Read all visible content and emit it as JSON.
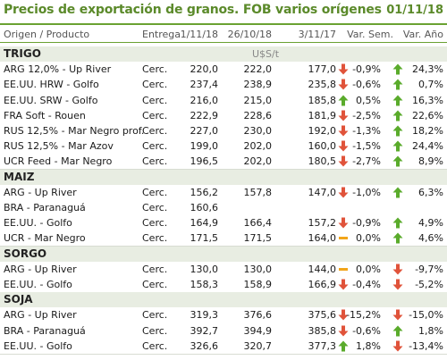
{
  "title": "Precios de exportación de granos. FOB varios orígenes",
  "date": "01/11/18",
  "headers": {
    "origin": "Origen / Producto",
    "delivery": "Entrega",
    "d1": "1/11/18",
    "d2": "26/10/18",
    "d3": "3/11/17",
    "var_sem": "Var. Sem.",
    "var_ano": "Var. Año"
  },
  "unit": "U$S/t",
  "colors": {
    "up": "#5aab2b",
    "down": "#e0533a",
    "flat": "#f2a51a",
    "accent": "#5b8a2a"
  },
  "sections": [
    {
      "name": "TRIGO",
      "rows": [
        {
          "name": "ARG 12,0% - Up River",
          "ent": "Cerc.",
          "d1": "220,0",
          "d2": "222,0",
          "d3": "177,0",
          "t3": "down",
          "sem": "-0,9%",
          "ts": "up",
          "ano": "24,3%"
        },
        {
          "name": "EE.UU. HRW - Golfo",
          "ent": "Cerc.",
          "d1": "237,4",
          "d2": "238,9",
          "d3": "235,8",
          "t3": "down",
          "sem": "-0,6%",
          "ts": "up",
          "ano": "0,7%"
        },
        {
          "name": "EE.UU. SRW - Golfo",
          "ent": "Cerc.",
          "d1": "216,0",
          "d2": "215,0",
          "d3": "185,8",
          "t3": "up",
          "sem": "0,5%",
          "ts": "up",
          "ano": "16,3%"
        },
        {
          "name": "FRA Soft - Rouen",
          "ent": "Cerc.",
          "d1": "222,9",
          "d2": "228,6",
          "d3": "181,9",
          "t3": "down",
          "sem": "-2,5%",
          "ts": "up",
          "ano": "22,6%"
        },
        {
          "name": "RUS 12,5% - Mar Negro prof.",
          "ent": "Cerc.",
          "d1": "227,0",
          "d2": "230,0",
          "d3": "192,0",
          "t3": "down",
          "sem": "-1,3%",
          "ts": "up",
          "ano": "18,2%"
        },
        {
          "name": "RUS 12,5% - Mar Azov",
          "ent": "Cerc.",
          "d1": "199,0",
          "d2": "202,0",
          "d3": "160,0",
          "t3": "down",
          "sem": "-1,5%",
          "ts": "up",
          "ano": "24,4%"
        },
        {
          "name": "UCR Feed - Mar Negro",
          "ent": "Cerc.",
          "d1": "196,5",
          "d2": "202,0",
          "d3": "180,5",
          "t3": "down",
          "sem": "-2,7%",
          "ts": "up",
          "ano": "8,9%"
        }
      ]
    },
    {
      "name": "MAIZ",
      "rows": [
        {
          "name": "ARG - Up River",
          "ent": "Cerc.",
          "d1": "156,2",
          "d2": "157,8",
          "d3": "147,0",
          "t3": "down",
          "sem": "-1,0%",
          "ts": "up",
          "ano": "6,3%"
        },
        {
          "name": "BRA - Paranaguá",
          "ent": "Cerc.",
          "d1": "160,6",
          "d2": "",
          "d3": "",
          "t3": "",
          "sem": "",
          "ts": "",
          "ano": ""
        },
        {
          "name": "EE.UU. - Golfo",
          "ent": "Cerc.",
          "d1": "164,9",
          "d2": "166,4",
          "d3": "157,2",
          "t3": "down",
          "sem": "-0,9%",
          "ts": "up",
          "ano": "4,9%"
        },
        {
          "name": "UCR - Mar Negro",
          "ent": "Cerc.",
          "d1": "171,5",
          "d2": "171,5",
          "d3": "164,0",
          "t3": "flat",
          "sem": "0,0%",
          "ts": "up",
          "ano": "4,6%"
        }
      ]
    },
    {
      "name": "SORGO",
      "rows": [
        {
          "name": "ARG - Up River",
          "ent": "Cerc.",
          "d1": "130,0",
          "d2": "130,0",
          "d3": "144,0",
          "t3": "flat",
          "sem": "0,0%",
          "ts": "down",
          "ano": "-9,7%"
        },
        {
          "name": "EE.UU. - Golfo",
          "ent": "Cerc.",
          "d1": "158,3",
          "d2": "158,9",
          "d3": "166,9",
          "t3": "down",
          "sem": "-0,4%",
          "ts": "down",
          "ano": "-5,2%"
        }
      ]
    },
    {
      "name": "SOJA",
      "rows": [
        {
          "name": "ARG - Up River",
          "ent": "Cerc.",
          "d1": "319,3",
          "d2": "376,6",
          "d3": "375,6",
          "t3": "down",
          "sem": "-15,2%",
          "ts": "down",
          "ano": "-15,0%"
        },
        {
          "name": "BRA - Paranaguá",
          "ent": "Cerc.",
          "d1": "392,7",
          "d2": "394,9",
          "d3": "385,8",
          "t3": "down",
          "sem": "-0,6%",
          "ts": "up",
          "ano": "1,8%"
        },
        {
          "name": "EE.UU. - Golfo",
          "ent": "Cerc.",
          "d1": "326,6",
          "d2": "320,7",
          "d3": "377,3",
          "t3": "up",
          "sem": "1,8%",
          "ts": "down",
          "ano": "-13,4%"
        }
      ]
    }
  ]
}
